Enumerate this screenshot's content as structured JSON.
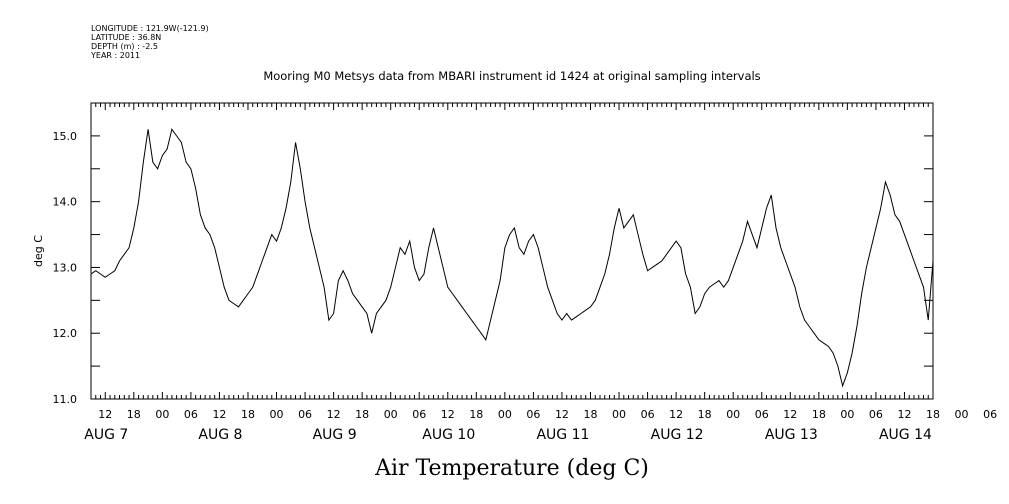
{
  "header": {
    "longitude": "LONGITUDE : 121.9W(-121.9)",
    "latitude": "LATITUDE : 36.8N",
    "depth": "DEPTH (m) : -2.5",
    "year": "YEAR : 2011"
  },
  "chart_data": {
    "type": "line",
    "title": "Mooring M0 Metsys data from MBARI instrument id 1424 at original sampling intervals",
    "xlabel": "Air Temperature (deg C)",
    "ylabel": "deg C",
    "ylim": [
      11.0,
      15.5
    ],
    "yticks": [
      "11.0",
      "12.0",
      "13.0",
      "14.0",
      "15.0"
    ],
    "xlim_hours": [
      9,
      186
    ],
    "hour_tick_labels": [
      "12",
      "18",
      "00",
      "06",
      "12",
      "18",
      "00",
      "06",
      "12",
      "18",
      "00",
      "06",
      "12",
      "18",
      "00",
      "06",
      "12",
      "18",
      "00",
      "06",
      "12",
      "18",
      "00",
      "06",
      "12",
      "18",
      "00",
      "06",
      "12",
      "18",
      "00",
      "06"
    ],
    "date_labels": [
      "AUG  7",
      "AUG  8",
      "AUG  9",
      "AUG 10",
      "AUG 11",
      "AUG 12",
      "AUG 13",
      "AUG 14"
    ],
    "grid": false,
    "series": [
      {
        "x": [
          9,
          10,
          11,
          12,
          13,
          14,
          15,
          16,
          17,
          18,
          19,
          20,
          21,
          22,
          23,
          24,
          25,
          26,
          27,
          28,
          29,
          30,
          31,
          32,
          33,
          34,
          35,
          36,
          37,
          38,
          39,
          40,
          41,
          42,
          43,
          44,
          45,
          46,
          47,
          48,
          49,
          50,
          51,
          52,
          53,
          54,
          55,
          56,
          57,
          58,
          59,
          60,
          61,
          62,
          63,
          64,
          65,
          66,
          67,
          68,
          69,
          70,
          71,
          72,
          73,
          74,
          75,
          76,
          77,
          78,
          79,
          80,
          81,
          82,
          83,
          84,
          85,
          86,
          87,
          88,
          89,
          90,
          91,
          92,
          93,
          94,
          95,
          96,
          97,
          98,
          99,
          100,
          101,
          102,
          103,
          104,
          105,
          106,
          107,
          108,
          109,
          110,
          111,
          112,
          113,
          114,
          115,
          116,
          117,
          118,
          119,
          120,
          121,
          122,
          123,
          124,
          125,
          126,
          127,
          128,
          129,
          130,
          131,
          132,
          133,
          134,
          135,
          136,
          137,
          138,
          139,
          140,
          141,
          142,
          143,
          144,
          145,
          146,
          147,
          148,
          149,
          150,
          151,
          152,
          153,
          154,
          155,
          156,
          157,
          158,
          159,
          160,
          161,
          162,
          163,
          164,
          165,
          166,
          167,
          168,
          169,
          170,
          171,
          172,
          173,
          174,
          175,
          176,
          177,
          178,
          179,
          180,
          181,
          182,
          183,
          184,
          185,
          186
        ],
        "values": [
          12.9,
          12.95,
          12.9,
          12.85,
          12.9,
          12.95,
          13.1,
          13.2,
          13.3,
          13.6,
          14.0,
          14.6,
          15.1,
          14.6,
          14.5,
          14.7,
          14.8,
          15.1,
          15.0,
          14.9,
          14.6,
          14.5,
          14.2,
          13.8,
          13.6,
          13.5,
          13.3,
          13.0,
          12.7,
          12.5,
          12.45,
          12.4,
          12.5,
          12.6,
          12.7,
          12.9,
          13.1,
          13.3,
          13.5,
          13.4,
          13.6,
          13.9,
          14.3,
          14.9,
          14.5,
          14.0,
          13.6,
          13.3,
          13.0,
          12.7,
          12.2,
          12.3,
          12.8,
          12.95,
          12.8,
          12.6,
          12.5,
          12.4,
          12.3,
          12.0,
          12.3,
          12.4,
          12.5,
          12.7,
          13.0,
          13.3,
          13.2,
          13.4,
          13.0,
          12.8,
          12.9,
          13.3,
          13.6,
          13.3,
          13.0,
          12.7,
          12.6,
          12.5,
          12.4,
          12.3,
          12.2,
          12.1,
          12.0,
          11.9,
          12.2,
          12.5,
          12.8,
          13.3,
          13.5,
          13.6,
          13.3,
          13.2,
          13.4,
          13.5,
          13.3,
          13.0,
          12.7,
          12.5,
          12.3,
          12.2,
          12.3,
          12.2,
          12.25,
          12.3,
          12.35,
          12.4,
          12.5,
          12.7,
          12.9,
          13.2,
          13.6,
          13.9,
          13.6,
          13.7,
          13.8,
          13.5,
          13.2,
          12.95,
          13.0,
          13.05,
          13.1,
          13.2,
          13.3,
          13.4,
          13.3,
          12.9,
          12.7,
          12.3,
          12.4,
          12.6,
          12.7,
          12.75,
          12.8,
          12.7,
          12.8,
          13.0,
          13.2,
          13.4,
          13.7,
          13.5,
          13.3,
          13.6,
          13.9,
          14.1,
          13.6,
          13.3,
          13.1,
          12.9,
          12.7,
          12.4,
          12.2,
          12.1,
          12.0,
          11.9,
          11.85,
          11.8,
          11.7,
          11.5,
          11.2,
          11.4,
          11.7,
          12.1,
          12.6,
          13.0,
          13.3,
          13.6,
          13.9,
          14.3,
          14.1,
          13.8,
          13.7,
          13.5,
          13.3,
          13.1,
          12.9,
          12.7,
          12.2,
          13.1
        ]
      }
    ]
  }
}
